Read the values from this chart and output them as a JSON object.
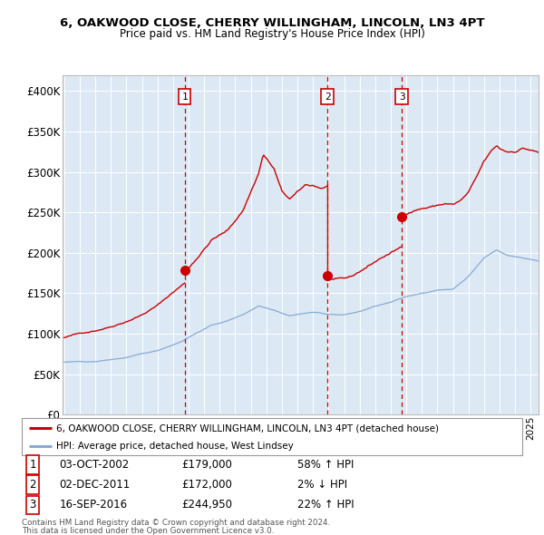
{
  "title1": "6, OAKWOOD CLOSE, CHERRY WILLINGHAM, LINCOLN, LN3 4PT",
  "title2": "Price paid vs. HM Land Registry's House Price Index (HPI)",
  "ylim": [
    0,
    420000
  ],
  "yticks": [
    0,
    50000,
    100000,
    150000,
    200000,
    250000,
    300000,
    350000,
    400000
  ],
  "ytick_labels": [
    "£0",
    "£50K",
    "£100K",
    "£150K",
    "£200K",
    "£250K",
    "£300K",
    "£350K",
    "£400K"
  ],
  "xlim_start": 1994.9,
  "xlim_end": 2025.5,
  "plot_bg_color": "#dce9f5",
  "red_line_color": "#cc0000",
  "blue_line_color": "#88aad4",
  "transactions": [
    {
      "num": 1,
      "year": 2002.75,
      "price": 179000
    },
    {
      "num": 2,
      "year": 2011.92,
      "price": 172000
    },
    {
      "num": 3,
      "year": 2016.71,
      "price": 244950
    }
  ],
  "legend_red": "6, OAKWOOD CLOSE, CHERRY WILLINGHAM, LINCOLN, LN3 4PT (detached house)",
  "legend_blue": "HPI: Average price, detached house, West Lindsey",
  "table_rows": [
    [
      "1",
      "03-OCT-2002",
      "£179,000",
      "58% ↑ HPI"
    ],
    [
      "2",
      "02-DEC-2011",
      "£172,000",
      "2% ↓ HPI"
    ],
    [
      "3",
      "16-SEP-2016",
      "£244,950",
      "22% ↑ HPI"
    ]
  ],
  "footer1": "Contains HM Land Registry data © Crown copyright and database right 2024.",
  "footer2": "This data is licensed under the Open Government Licence v3.0."
}
